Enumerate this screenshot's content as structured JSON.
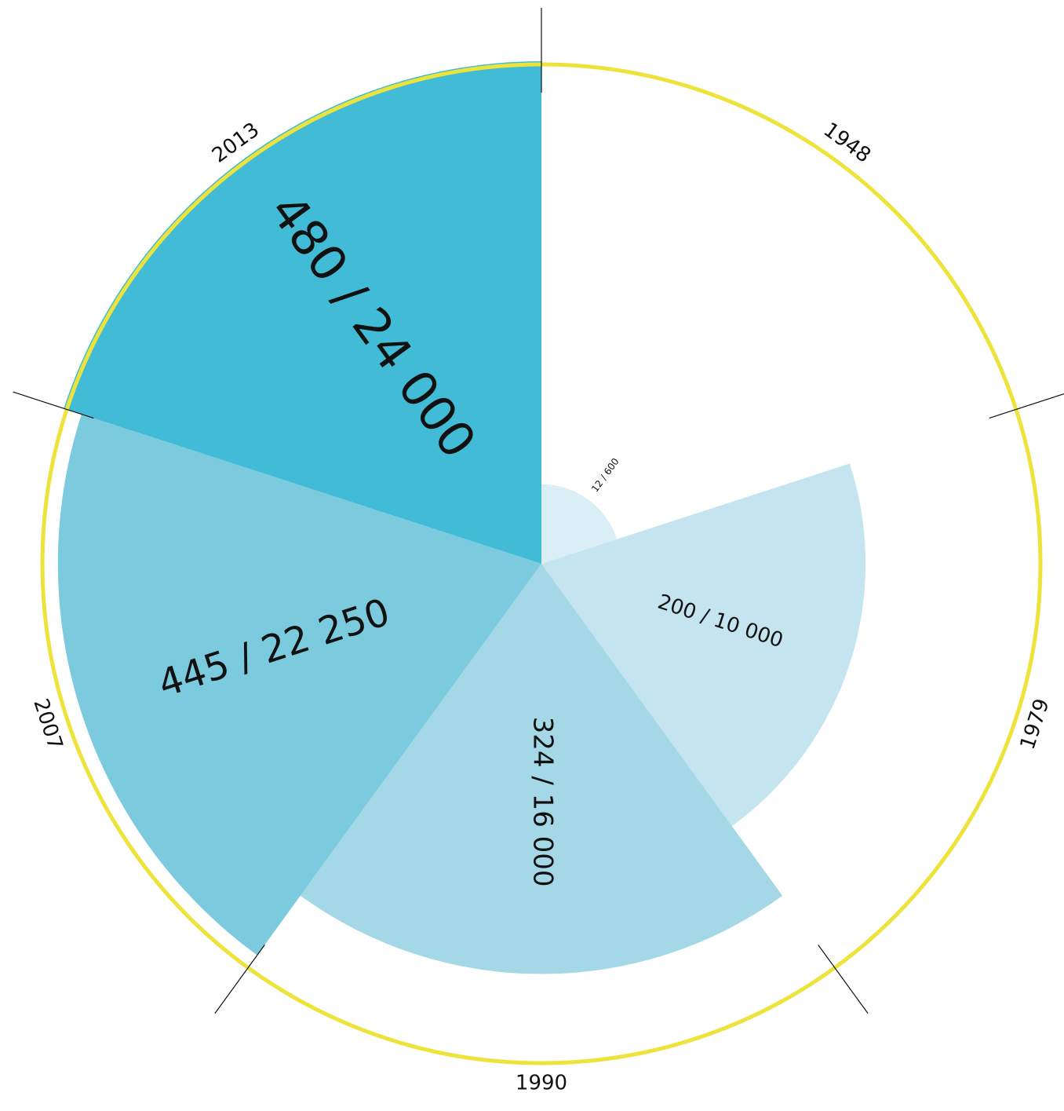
{
  "chart_data": {
    "type": "polar_area",
    "title": "",
    "unit_note": "",
    "max_value": 24000,
    "colors": {
      "ring": "#ede33a",
      "divider": "#111111",
      "text": "#111111"
    },
    "sectors": [
      {
        "year": "1948",
        "value": 600,
        "label": "12 / 600",
        "color": "#d9eef5"
      },
      {
        "year": "1979",
        "value": 10000,
        "label": "200 / 10 000",
        "color": "#c4e5ef"
      },
      {
        "year": "1990",
        "value": 16000,
        "label": "324 / 16 000",
        "color": "#a5d8e6"
      },
      {
        "year": "2007",
        "value": 22250,
        "label": "445 / 22 250",
        "color": "#7ccade"
      },
      {
        "year": "2013",
        "value": 24000,
        "label": "480 / 24 000",
        "color": "#42bbd6"
      }
    ]
  }
}
